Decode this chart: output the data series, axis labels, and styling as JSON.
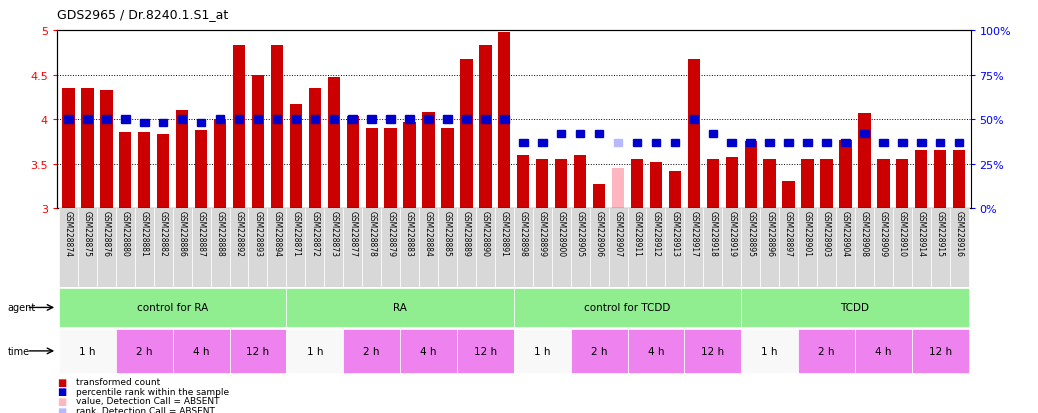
{
  "title": "GDS2965 / Dr.8240.1.S1_at",
  "samples": [
    "GSM228874",
    "GSM228875",
    "GSM228876",
    "GSM228880",
    "GSM228881",
    "GSM228882",
    "GSM228886",
    "GSM228887",
    "GSM228888",
    "GSM228892",
    "GSM228893",
    "GSM228894",
    "GSM228871",
    "GSM228872",
    "GSM228873",
    "GSM228877",
    "GSM228878",
    "GSM228879",
    "GSM228883",
    "GSM228884",
    "GSM228885",
    "GSM228889",
    "GSM228890",
    "GSM228891",
    "GSM228898",
    "GSM228899",
    "GSM228900",
    "GSM228905",
    "GSM228906",
    "GSM228907",
    "GSM228911",
    "GSM228912",
    "GSM228913",
    "GSM228917",
    "GSM228918",
    "GSM228919",
    "GSM228895",
    "GSM228896",
    "GSM228897",
    "GSM228901",
    "GSM228903",
    "GSM228904",
    "GSM228908",
    "GSM228909",
    "GSM228910",
    "GSM228914",
    "GSM228915",
    "GSM228916"
  ],
  "red_values": [
    4.35,
    4.35,
    4.33,
    3.85,
    3.85,
    3.83,
    4.1,
    3.88,
    4.0,
    4.83,
    4.5,
    4.83,
    4.17,
    4.35,
    4.47,
    4.03,
    3.9,
    3.9,
    3.97,
    4.08,
    3.9,
    4.67,
    4.83,
    4.98,
    3.6,
    3.55,
    3.55,
    3.6,
    3.27,
    3.45,
    3.55,
    3.52,
    3.42,
    4.67,
    3.55,
    3.57,
    3.75,
    3.55,
    3.3,
    3.55,
    3.55,
    3.77,
    4.07,
    3.55,
    3.55,
    3.65,
    3.65,
    3.65
  ],
  "blue_values_pct": [
    50,
    50,
    50,
    50,
    48,
    48,
    50,
    48,
    50,
    50,
    50,
    50,
    50,
    50,
    50,
    50,
    50,
    50,
    50,
    50,
    50,
    50,
    50,
    50,
    37,
    37,
    42,
    42,
    42,
    37,
    37,
    37,
    37,
    50,
    42,
    37,
    37,
    37,
    37,
    37,
    37,
    37,
    42,
    37,
    37,
    37,
    37,
    37
  ],
  "absent_red": [
    false,
    false,
    false,
    false,
    false,
    false,
    false,
    false,
    false,
    false,
    false,
    false,
    false,
    false,
    false,
    false,
    false,
    false,
    false,
    false,
    false,
    false,
    false,
    false,
    false,
    false,
    false,
    false,
    false,
    true,
    false,
    false,
    false,
    false,
    false,
    false,
    false,
    false,
    false,
    false,
    false,
    false,
    false,
    false,
    false,
    false,
    false,
    false
  ],
  "absent_blue": [
    false,
    false,
    false,
    false,
    false,
    false,
    false,
    false,
    false,
    false,
    false,
    false,
    false,
    false,
    false,
    false,
    false,
    false,
    false,
    false,
    false,
    false,
    false,
    false,
    false,
    false,
    false,
    false,
    false,
    true,
    false,
    false,
    false,
    false,
    false,
    false,
    false,
    false,
    false,
    false,
    false,
    false,
    false,
    false,
    false,
    false,
    false,
    false
  ],
  "agent_groups": [
    {
      "label": "control for RA",
      "start": 0,
      "end": 12,
      "color": "#90EE90"
    },
    {
      "label": "RA",
      "start": 12,
      "end": 24,
      "color": "#90EE90"
    },
    {
      "label": "control for TCDD",
      "start": 24,
      "end": 36,
      "color": "#90EE90"
    },
    {
      "label": "TCDD",
      "start": 36,
      "end": 48,
      "color": "#90EE90"
    }
  ],
  "time_groups": [
    {
      "label": "1 h",
      "start": 0,
      "end": 3,
      "color": "#f8f8f8"
    },
    {
      "label": "2 h",
      "start": 3,
      "end": 6,
      "color": "#ee82ee"
    },
    {
      "label": "4 h",
      "start": 6,
      "end": 9,
      "color": "#ee82ee"
    },
    {
      "label": "12 h",
      "start": 9,
      "end": 12,
      "color": "#ee82ee"
    },
    {
      "label": "1 h",
      "start": 12,
      "end": 15,
      "color": "#f8f8f8"
    },
    {
      "label": "2 h",
      "start": 15,
      "end": 18,
      "color": "#ee82ee"
    },
    {
      "label": "4 h",
      "start": 18,
      "end": 21,
      "color": "#ee82ee"
    },
    {
      "label": "12 h",
      "start": 21,
      "end": 24,
      "color": "#ee82ee"
    },
    {
      "label": "1 h",
      "start": 24,
      "end": 27,
      "color": "#f8f8f8"
    },
    {
      "label": "2 h",
      "start": 27,
      "end": 30,
      "color": "#ee82ee"
    },
    {
      "label": "4 h",
      "start": 30,
      "end": 33,
      "color": "#ee82ee"
    },
    {
      "label": "12 h",
      "start": 33,
      "end": 36,
      "color": "#ee82ee"
    },
    {
      "label": "1 h",
      "start": 36,
      "end": 39,
      "color": "#f8f8f8"
    },
    {
      "label": "2 h",
      "start": 39,
      "end": 42,
      "color": "#ee82ee"
    },
    {
      "label": "4 h",
      "start": 42,
      "end": 45,
      "color": "#ee82ee"
    },
    {
      "label": "12 h",
      "start": 45,
      "end": 48,
      "color": "#ee82ee"
    }
  ],
  "ylim_left": [
    3.0,
    5.0
  ],
  "ylim_right": [
    0,
    100
  ],
  "yticks_left": [
    3.0,
    3.5,
    4.0,
    4.5,
    5.0
  ],
  "yticks_right": [
    0,
    25,
    50,
    75,
    100
  ],
  "bar_color_normal": "#cc0000",
  "bar_color_absent": "#ffb6c1",
  "blue_color_normal": "#0000cc",
  "blue_color_absent": "#b8b8ff",
  "bar_width": 0.65,
  "bg_xtick": "#d8d8d8",
  "legend": [
    {
      "color": "#cc0000",
      "label": "transformed count"
    },
    {
      "color": "#0000cc",
      "label": "percentile rank within the sample"
    },
    {
      "color": "#ffb6c1",
      "label": "value, Detection Call = ABSENT"
    },
    {
      "color": "#b8b8ff",
      "label": "rank, Detection Call = ABSENT"
    }
  ]
}
